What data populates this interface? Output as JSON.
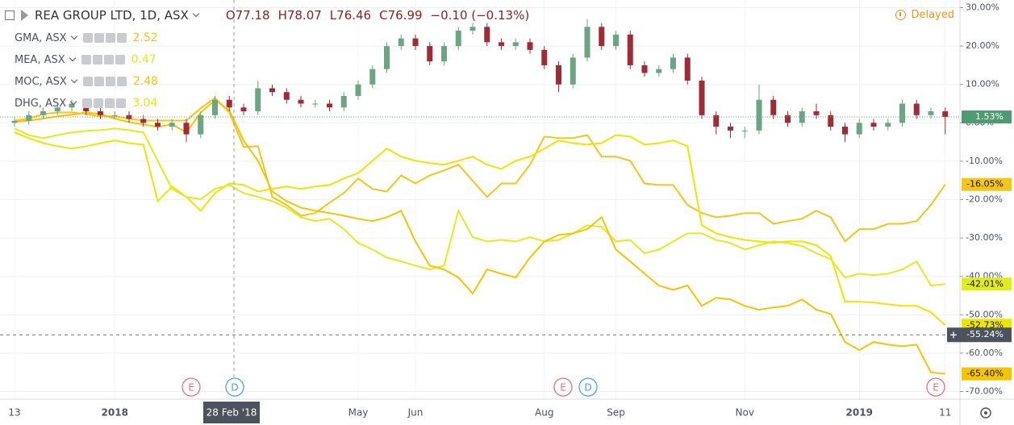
{
  "chart_data": {
    "type": "candlestick",
    "title": "REA GROUP LTD, 1D, ASX",
    "ohlc_text": [
      "O77.18",
      "H78.07",
      "L76.46",
      "C76.99",
      "−0.10 (−0.13%)"
    ],
    "status": "Delayed",
    "categories": [
      "13",
      null,
      null,
      null,
      null,
      null,
      null,
      "2018",
      null,
      null,
      null,
      null,
      null,
      null,
      null,
      null,
      null,
      null,
      null,
      null,
      null,
      null,
      null,
      null,
      "May",
      null,
      null,
      null,
      "Jun",
      null,
      null,
      null,
      null,
      null,
      null,
      null,
      null,
      "Aug",
      null,
      null,
      null,
      null,
      "Sep",
      null,
      null,
      null,
      null,
      null,
      null,
      null,
      null,
      "Nov",
      null,
      null,
      null,
      null,
      null,
      null,
      null,
      "2019",
      null,
      null,
      null,
      null,
      null,
      "11"
    ],
    "open": [
      0,
      0.5,
      2,
      3,
      4,
      5,
      3,
      2,
      2,
      1,
      0,
      -1,
      0,
      -3,
      2,
      6,
      4,
      3,
      9,
      8,
      6,
      5,
      5,
      4,
      7,
      10,
      14,
      20,
      22,
      20,
      16,
      20,
      24,
      25,
      21,
      20,
      21,
      19,
      15,
      10,
      17,
      25,
      20,
      23,
      15,
      13,
      14,
      17,
      11,
      2,
      -1,
      -2,
      -2,
      6,
      2,
      0,
      3,
      2,
      -1,
      -3,
      0,
      -1,
      0,
      5,
      2,
      3
    ],
    "high": [
      1.5,
      3,
      4,
      5,
      6,
      6,
      4,
      3,
      3,
      2,
      1,
      1,
      1,
      3,
      7,
      7,
      5,
      11,
      10,
      9,
      7,
      6,
      6,
      8,
      11,
      15,
      21,
      23,
      23,
      21,
      21,
      25,
      26,
      26,
      22,
      22,
      22,
      20,
      16,
      18,
      27,
      26,
      24,
      24,
      16,
      15,
      18,
      18,
      12,
      3,
      0,
      -1,
      10,
      7,
      3,
      4,
      5,
      3,
      0,
      1,
      1,
      1,
      6,
      6,
      4,
      4
    ],
    "low": [
      -1,
      -0.5,
      1,
      2,
      3,
      2,
      1,
      1,
      0,
      -1,
      -2,
      -2,
      -5,
      -4,
      1,
      3,
      2,
      2,
      7,
      5,
      4,
      4,
      3,
      3,
      6,
      9,
      13,
      19,
      19,
      15,
      15,
      19,
      23,
      20,
      19,
      19,
      18,
      14,
      8,
      9,
      16,
      19,
      19,
      14,
      12,
      12,
      13,
      10,
      1,
      -3,
      -4,
      -4,
      -3,
      1,
      -1,
      -1,
      1,
      -2,
      -5,
      -4,
      -2,
      -2,
      -1,
      1,
      1,
      -3
    ],
    "close": [
      0.5,
      2,
      3,
      4,
      5,
      3,
      2,
      2,
      1,
      0,
      -1,
      0,
      -3,
      2,
      6,
      4,
      3,
      9,
      8,
      6,
      5,
      5,
      4,
      7,
      10,
      14,
      20,
      22,
      20,
      16,
      20,
      24,
      25,
      21,
      20,
      21,
      19,
      15,
      10,
      17,
      25,
      20,
      23,
      15,
      13,
      14,
      17,
      11,
      2,
      -1,
      -2,
      -2,
      6,
      2,
      0,
      3,
      2,
      -1,
      -3,
      0,
      -1,
      0,
      5,
      2,
      3,
      1.53
    ],
    "last_label": "1.53%",
    "up_color": "#6ba583",
    "down_color": "#9e2b36",
    "overlays": [
      {
        "name": "GMA, ASX",
        "legend_value": 2.52,
        "color": "#f5c518",
        "last_label": "-16.05%",
        "values": [
          0.6,
          1.1,
          2.3,
          2.7,
          2.7,
          2.3,
          1.7,
          1.7,
          1.1,
          0.6,
          0.6,
          0.6,
          0.6,
          3.8,
          6.5,
          2.7,
          -6.3,
          -6.1,
          -19.3,
          -21.4,
          -24.2,
          -23.5,
          -20.8,
          -18.3,
          -14.5,
          -17.2,
          -17.9,
          -13.7,
          -15.8,
          -13.7,
          -12.4,
          -10.9,
          -15.1,
          -19.3,
          -15.8,
          -15.8,
          -10.9,
          -3.6,
          -4,
          -4,
          -3.2,
          -8.8,
          -8.8,
          -9.9,
          -15.8,
          -16.2,
          -16.2,
          -21.4,
          -23.5,
          -24.6,
          -24.2,
          -23.5,
          -23.5,
          -26.3,
          -25.6,
          -25,
          -22.9,
          -24.6,
          -30.9,
          -27.7,
          -27.7,
          -26.3,
          -26.3,
          -25.6,
          -21.4,
          -16.05
        ]
      },
      {
        "name": "MEA, ASX",
        "legend_value": 0.47,
        "color": "#e2ec1c",
        "last_label": "-42.01%",
        "values": [
          -1.5,
          -3.2,
          -4,
          -3.2,
          -2.5,
          -2.1,
          -1.9,
          -1.5,
          -1.9,
          -2.5,
          -9.9,
          -17.2,
          -19.3,
          -19.9,
          -17.2,
          -16.2,
          -18.3,
          -19.3,
          -20.4,
          -22.1,
          -24.6,
          -25.6,
          -25,
          -27.7,
          -31.3,
          -33,
          -35.1,
          -36.1,
          -37.2,
          -38.2,
          -37.2,
          -22.9,
          -29.8,
          -30.9,
          -30.5,
          -30.9,
          -29.8,
          -30.9,
          -30.5,
          -28.8,
          -26.7,
          -27.1,
          -30.9,
          -30.5,
          -34,
          -33,
          -30.9,
          -28.8,
          -28.8,
          -30.5,
          -31.3,
          -33,
          -31.9,
          -30.9,
          -31.3,
          -32.1,
          -34,
          -35.5,
          -40.3,
          -39.3,
          -39.7,
          -39.3,
          -38.2,
          -36.1,
          -42.4,
          -42.01
        ]
      },
      {
        "name": "MOC, ASX",
        "legend_value": 2.48,
        "color": "#f7c400",
        "last_label": "-65.40%",
        "values": [
          0.2,
          0.6,
          1.1,
          1.7,
          2.1,
          2.7,
          2.3,
          1.1,
          0.2,
          -0.4,
          -1.1,
          -0.4,
          -2.5,
          2.7,
          5.9,
          3.2,
          -4.6,
          -9.9,
          -17.9,
          -20.4,
          -22.1,
          -22.9,
          -23.5,
          -24.2,
          -25,
          -25.6,
          -24.6,
          -22.9,
          -30.9,
          -37.2,
          -38.2,
          -40.3,
          -44.5,
          -38.2,
          -39.3,
          -40.3,
          -35.1,
          -30.9,
          -29.2,
          -28.8,
          -27.7,
          -24.6,
          -33,
          -36.1,
          -39.3,
          -42.4,
          -43.5,
          -42.4,
          -47.7,
          -45.6,
          -46,
          -47.7,
          -48.7,
          -48.1,
          -47.7,
          -46,
          -48.7,
          -49.8,
          -57.1,
          -59.2,
          -57.1,
          -57.8,
          -58.2,
          -57.8,
          -65,
          -65.4
        ]
      },
      {
        "name": "DHG, ASX",
        "legend_value": 3.04,
        "color": "#eee600",
        "last_label": "-52.73%",
        "values": [
          -2.5,
          -4,
          -5.3,
          -6.1,
          -6.7,
          -6.1,
          -5.3,
          -4.6,
          -5.3,
          -5.7,
          -20.4,
          -16.6,
          -19.3,
          -22.9,
          -18.3,
          -15.8,
          -16.2,
          -17.9,
          -17.2,
          -16.6,
          -17.2,
          -16.6,
          -16.2,
          -14.5,
          -13.1,
          -9.9,
          -6.7,
          -8.8,
          -9.9,
          -10.5,
          -10.9,
          -9.9,
          -8.8,
          -10.9,
          -12,
          -9.9,
          -8.8,
          -6.7,
          -4.6,
          -5.3,
          -5.7,
          -5.3,
          -3.2,
          -3.6,
          -5.7,
          -5.3,
          -4.6,
          -6.1,
          -26.7,
          -28.8,
          -29.8,
          -30.5,
          -30.9,
          -31.3,
          -30.9,
          -30.9,
          -31.9,
          -34.7,
          -46.6,
          -46.6,
          -46.8,
          -47.3,
          -47.7,
          -47.7,
          -49.4,
          -52.73
        ]
      }
    ],
    "ylim": [
      -72,
      32
    ],
    "yticks": [
      {
        "value": 30,
        "label": "30.00%"
      },
      {
        "value": 20,
        "label": "20.00%"
      },
      {
        "value": 10,
        "label": "10.00%"
      },
      {
        "value": 0,
        "label": "0.00%"
      },
      {
        "value": -10,
        "label": "-10.00%"
      },
      {
        "value": -20,
        "label": "-20.00%"
      },
      {
        "value": -30,
        "label": "-30.00%"
      },
      {
        "value": -40,
        "label": "-40.00%"
      },
      {
        "value": -50,
        "label": "-50.00%"
      },
      {
        "value": -60,
        "label": "-60.00%"
      },
      {
        "value": -70,
        "label": "-70.00%"
      }
    ],
    "grid": true,
    "crosshair": {
      "x_label": "28 Feb '18",
      "y_value": -55.24,
      "y_label": "-55.24%"
    },
    "events": [
      "E",
      "D",
      "E",
      "D",
      "E"
    ]
  }
}
